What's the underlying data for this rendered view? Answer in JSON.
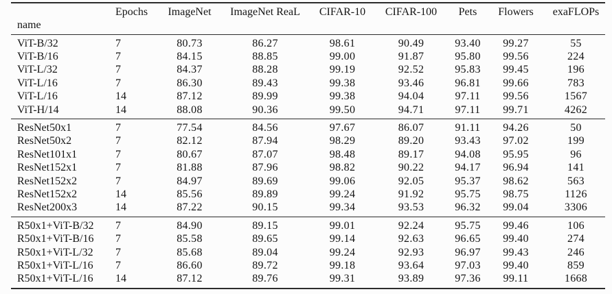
{
  "table": {
    "name_header": "name",
    "columns": [
      "Epochs",
      "ImageNet",
      "ImageNet ReaL",
      "CIFAR-10",
      "CIFAR-100",
      "Pets",
      "Flowers",
      "exaFLOPs"
    ],
    "groups": [
      {
        "rows": [
          {
            "name": "ViT-B/32",
            "values": [
              "7",
              "80.73",
              "86.27",
              "98.61",
              "90.49",
              "93.40",
              "99.27",
              "55"
            ]
          },
          {
            "name": "ViT-B/16",
            "values": [
              "7",
              "84.15",
              "88.85",
              "99.00",
              "91.87",
              "95.80",
              "99.56",
              "224"
            ]
          },
          {
            "name": "ViT-L/32",
            "values": [
              "7",
              "84.37",
              "88.28",
              "99.19",
              "92.52",
              "95.83",
              "99.45",
              "196"
            ]
          },
          {
            "name": "ViT-L/16",
            "values": [
              "7",
              "86.30",
              "89.43",
              "99.38",
              "93.46",
              "96.81",
              "99.66",
              "783"
            ]
          },
          {
            "name": "ViT-L/16",
            "values": [
              "14",
              "87.12",
              "89.99",
              "99.38",
              "94.04",
              "97.11",
              "99.56",
              "1567"
            ]
          },
          {
            "name": "ViT-H/14",
            "values": [
              "14",
              "88.08",
              "90.36",
              "99.50",
              "94.71",
              "97.11",
              "99.71",
              "4262"
            ]
          }
        ]
      },
      {
        "rows": [
          {
            "name": "ResNet50x1",
            "values": [
              "7",
              "77.54",
              "84.56",
              "97.67",
              "86.07",
              "91.11",
              "94.26",
              "50"
            ]
          },
          {
            "name": "ResNet50x2",
            "values": [
              "7",
              "82.12",
              "87.94",
              "98.29",
              "89.20",
              "93.43",
              "97.02",
              "199"
            ]
          },
          {
            "name": "ResNet101x1",
            "values": [
              "7",
              "80.67",
              "87.07",
              "98.48",
              "89.17",
              "94.08",
              "95.95",
              "96"
            ]
          },
          {
            "name": "ResNet152x1",
            "values": [
              "7",
              "81.88",
              "87.96",
              "98.82",
              "90.22",
              "94.17",
              "96.94",
              "141"
            ]
          },
          {
            "name": "ResNet152x2",
            "values": [
              "7",
              "84.97",
              "89.69",
              "99.06",
              "92.05",
              "95.37",
              "98.62",
              "563"
            ]
          },
          {
            "name": "ResNet152x2",
            "values": [
              "14",
              "85.56",
              "89.89",
              "99.24",
              "91.92",
              "95.75",
              "98.75",
              "1126"
            ]
          },
          {
            "name": "ResNet200x3",
            "values": [
              "14",
              "87.22",
              "90.15",
              "99.34",
              "93.53",
              "96.32",
              "99.04",
              "3306"
            ]
          }
        ]
      },
      {
        "rows": [
          {
            "name": "R50x1+ViT-B/32",
            "values": [
              "7",
              "84.90",
              "89.15",
              "99.01",
              "92.24",
              "95.75",
              "99.46",
              "106"
            ]
          },
          {
            "name": "R50x1+ViT-B/16",
            "values": [
              "7",
              "85.58",
              "89.65",
              "99.14",
              "92.63",
              "96.65",
              "99.40",
              "274"
            ]
          },
          {
            "name": "R50x1+ViT-L/32",
            "values": [
              "7",
              "85.68",
              "89.04",
              "99.24",
              "92.93",
              "96.97",
              "99.43",
              "246"
            ]
          },
          {
            "name": "R50x1+ViT-L/16",
            "values": [
              "7",
              "86.60",
              "89.72",
              "99.18",
              "93.64",
              "97.03",
              "99.40",
              "859"
            ]
          },
          {
            "name": "R50x1+ViT-L/16",
            "values": [
              "14",
              "87.12",
              "89.76",
              "99.31",
              "93.89",
              "97.36",
              "99.11",
              "1668"
            ]
          }
        ]
      }
    ]
  },
  "colors": {
    "text": "#141414",
    "rule": "#2b2b2b",
    "background": "#fcfcfc"
  }
}
